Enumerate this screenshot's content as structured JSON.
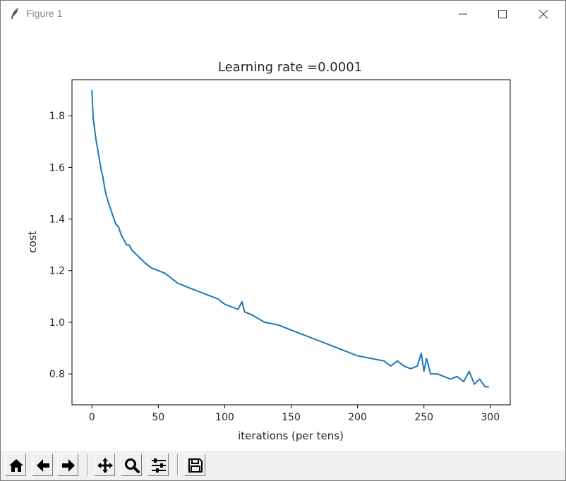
{
  "window": {
    "title": "Figure 1",
    "icon": "feather-icon",
    "controls": [
      "minimize-icon",
      "maximize-icon",
      "close-icon"
    ]
  },
  "toolbar": {
    "buttons": [
      "home-icon",
      "back-arrow-icon",
      "forward-arrow-icon",
      "pan-icon",
      "zoom-icon",
      "subplots-config-icon",
      "save-icon"
    ]
  },
  "colors": {
    "line": "#1f77b4",
    "axes": "#000000",
    "toolbar_bg": "#f0f0f0"
  },
  "chart_data": {
    "type": "line",
    "title": "Learning rate =0.0001",
    "xlabel": "iterations (per tens)",
    "ylabel": "cost",
    "xlim": [
      -15,
      315
    ],
    "ylim": [
      0.68,
      1.94
    ],
    "xticks": [
      0,
      50,
      100,
      150,
      200,
      250,
      300
    ],
    "yticks": [
      0.8,
      1.0,
      1.2,
      1.4,
      1.6,
      1.8
    ],
    "grid": false,
    "series": [
      {
        "x": [
          0,
          1,
          2,
          3,
          4,
          5,
          6,
          7,
          8,
          9,
          10,
          12,
          14,
          16,
          18,
          20,
          22,
          24,
          26,
          28,
          30,
          32,
          34,
          36,
          38,
          40,
          45,
          50,
          55,
          60,
          65,
          70,
          75,
          80,
          85,
          90,
          95,
          100,
          105,
          110,
          113,
          115,
          120,
          130,
          140,
          150,
          160,
          170,
          180,
          190,
          200,
          210,
          220,
          225,
          230,
          235,
          240,
          245,
          248,
          250,
          252,
          255,
          260,
          265,
          270,
          275,
          280,
          284,
          288,
          292,
          296,
          299
        ],
        "y": [
          1.9,
          1.79,
          1.75,
          1.71,
          1.68,
          1.65,
          1.62,
          1.59,
          1.57,
          1.54,
          1.51,
          1.47,
          1.44,
          1.41,
          1.38,
          1.37,
          1.34,
          1.32,
          1.3,
          1.3,
          1.28,
          1.27,
          1.26,
          1.25,
          1.24,
          1.23,
          1.21,
          1.2,
          1.19,
          1.17,
          1.15,
          1.14,
          1.13,
          1.12,
          1.11,
          1.1,
          1.09,
          1.07,
          1.06,
          1.05,
          1.08,
          1.04,
          1.03,
          1.0,
          0.99,
          0.97,
          0.95,
          0.93,
          0.91,
          0.89,
          0.87,
          0.86,
          0.85,
          0.83,
          0.85,
          0.83,
          0.82,
          0.83,
          0.88,
          0.81,
          0.86,
          0.8,
          0.8,
          0.79,
          0.78,
          0.79,
          0.77,
          0.81,
          0.76,
          0.78,
          0.75,
          0.75
        ]
      }
    ]
  }
}
